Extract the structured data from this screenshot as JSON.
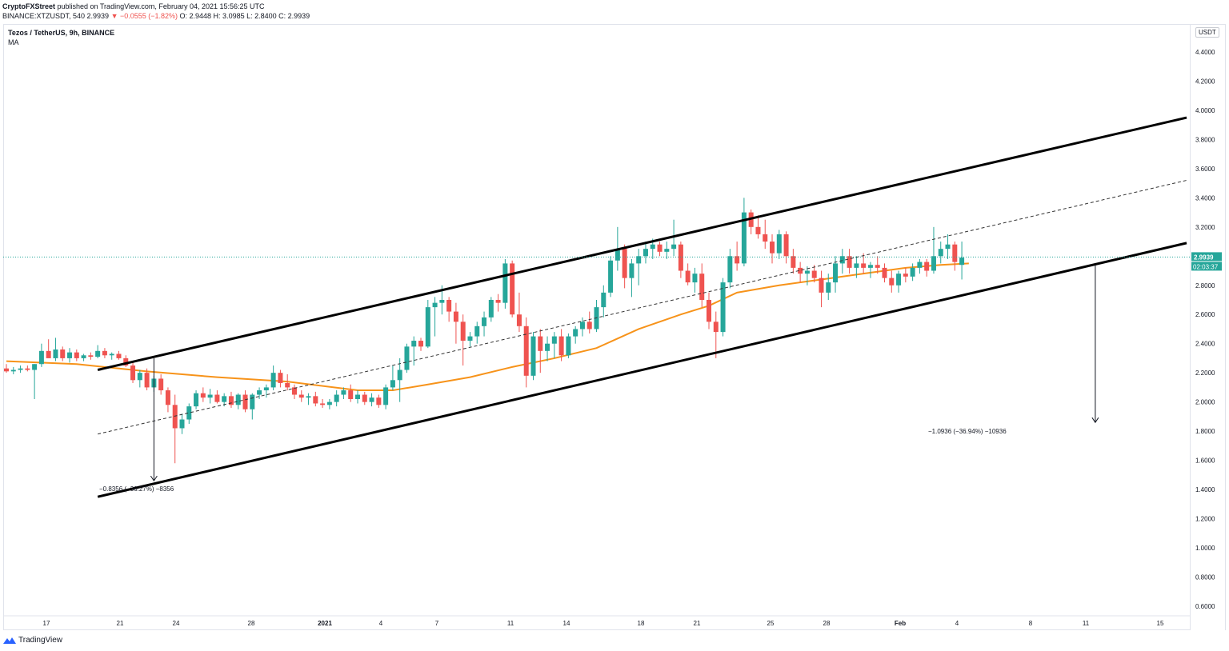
{
  "header": {
    "line1_user": "CryptoFXStreet",
    "line1_rest": " published on TradingView.com, February 04, 2021 15:56:25 UTC",
    "line2_prefix": "BINANCE:XTZUSDT, 540  2.9939 ",
    "line2_change": "▼ −0.0555 (−1.82%)",
    "line2_ohlc": " O: 2.9448  H: 3.0985  L: 2.8400  C: 2.9939"
  },
  "legend": {
    "title": "Tezos / TetherUS, 9h, BINANCE",
    "indicator": "MA"
  },
  "axis": {
    "unit": "USDT",
    "price_labels": [
      "4.4000",
      "4.2000",
      "4.0000",
      "3.8000",
      "3.6000",
      "3.4000",
      "3.2000",
      "3.0000",
      "2.8000",
      "2.6000",
      "2.4000",
      "2.2000",
      "2.0000",
      "1.8000",
      "1.6000",
      "1.4000",
      "1.2000",
      "1.0000",
      "0.8000",
      "0.6000"
    ],
    "time_labels": [
      "17",
      "21",
      "24",
      "28",
      "2021",
      "4",
      "7",
      "11",
      "14",
      "18",
      "21",
      "25",
      "28",
      "Feb",
      "4",
      "8",
      "11",
      "15"
    ]
  },
  "price_tag": {
    "value": "2.9939",
    "countdown": "02:03:37"
  },
  "annotations": {
    "left_measure": "−0.8356 (−36.27%) −8356",
    "right_measure": "−1.0936 (−36.94%) −10936"
  },
  "branding": {
    "logo_text": "TradingView"
  },
  "colors": {
    "up": "#26a69a",
    "down": "#ef5350",
    "ma": "#f7931a",
    "channel": "#000000",
    "price_line": "#26a69a"
  },
  "chart_data": {
    "type": "candlestick",
    "symbol": "XTZUSDT",
    "interval": "9h",
    "x_axis": "time",
    "ylim": [
      0.5,
      4.5
    ],
    "y_scale": "linear",
    "grid": false,
    "candles": [
      {
        "o": 2.23,
        "h": 2.26,
        "l": 2.2,
        "c": 2.21
      },
      {
        "o": 2.21,
        "h": 2.24,
        "l": 2.19,
        "c": 2.22
      },
      {
        "o": 2.22,
        "h": 2.25,
        "l": 2.2,
        "c": 2.23
      },
      {
        "o": 2.23,
        "h": 2.25,
        "l": 2.21,
        "c": 2.22
      },
      {
        "o": 2.22,
        "h": 2.26,
        "l": 2.02,
        "c": 2.26
      },
      {
        "o": 2.26,
        "h": 2.4,
        "l": 2.24,
        "c": 2.35
      },
      {
        "o": 2.35,
        "h": 2.43,
        "l": 2.33,
        "c": 2.3
      },
      {
        "o": 2.3,
        "h": 2.44,
        "l": 2.28,
        "c": 2.36
      },
      {
        "o": 2.36,
        "h": 2.38,
        "l": 2.28,
        "c": 2.3
      },
      {
        "o": 2.3,
        "h": 2.37,
        "l": 2.27,
        "c": 2.34
      },
      {
        "o": 2.34,
        "h": 2.36,
        "l": 2.28,
        "c": 2.3
      },
      {
        "o": 2.3,
        "h": 2.33,
        "l": 2.28,
        "c": 2.32
      },
      {
        "o": 2.32,
        "h": 2.34,
        "l": 2.29,
        "c": 2.31
      },
      {
        "o": 2.31,
        "h": 2.39,
        "l": 2.3,
        "c": 2.35
      },
      {
        "o": 2.35,
        "h": 2.37,
        "l": 2.3,
        "c": 2.32
      },
      {
        "o": 2.32,
        "h": 2.34,
        "l": 2.29,
        "c": 2.33
      },
      {
        "o": 2.33,
        "h": 2.35,
        "l": 2.29,
        "c": 2.3
      },
      {
        "o": 2.3,
        "h": 2.32,
        "l": 2.24,
        "c": 2.25
      },
      {
        "o": 2.25,
        "h": 2.28,
        "l": 2.13,
        "c": 2.15
      },
      {
        "o": 2.15,
        "h": 2.22,
        "l": 2.1,
        "c": 2.2
      },
      {
        "o": 2.2,
        "h": 2.23,
        "l": 2.08,
        "c": 2.1
      },
      {
        "o": 2.1,
        "h": 2.18,
        "l": 2.07,
        "c": 2.16
      },
      {
        "o": 2.16,
        "h": 2.19,
        "l": 2.05,
        "c": 2.08
      },
      {
        "o": 2.08,
        "h": 2.1,
        "l": 1.93,
        "c": 1.98
      },
      {
        "o": 1.98,
        "h": 2.05,
        "l": 1.58,
        "c": 1.82
      },
      {
        "o": 1.82,
        "h": 1.92,
        "l": 1.78,
        "c": 1.88
      },
      {
        "o": 1.88,
        "h": 1.99,
        "l": 1.85,
        "c": 1.97
      },
      {
        "o": 1.97,
        "h": 2.08,
        "l": 1.95,
        "c": 2.06
      },
      {
        "o": 2.06,
        "h": 2.1,
        "l": 2.0,
        "c": 2.03
      },
      {
        "o": 2.03,
        "h": 2.09,
        "l": 1.99,
        "c": 2.05
      },
      {
        "o": 2.05,
        "h": 2.08,
        "l": 1.99,
        "c": 2.0
      },
      {
        "o": 2.0,
        "h": 2.06,
        "l": 1.97,
        "c": 2.04
      },
      {
        "o": 2.04,
        "h": 2.07,
        "l": 1.96,
        "c": 1.98
      },
      {
        "o": 1.98,
        "h": 2.06,
        "l": 1.95,
        "c": 2.05
      },
      {
        "o": 2.05,
        "h": 2.08,
        "l": 1.93,
        "c": 1.95
      },
      {
        "o": 1.95,
        "h": 2.06,
        "l": 1.88,
        "c": 2.05
      },
      {
        "o": 2.05,
        "h": 2.1,
        "l": 2.02,
        "c": 2.08
      },
      {
        "o": 2.08,
        "h": 2.12,
        "l": 2.03,
        "c": 2.1
      },
      {
        "o": 2.1,
        "h": 2.25,
        "l": 2.08,
        "c": 2.2
      },
      {
        "o": 2.2,
        "h": 2.22,
        "l": 2.1,
        "c": 2.13
      },
      {
        "o": 2.13,
        "h": 2.19,
        "l": 2.08,
        "c": 2.1
      },
      {
        "o": 2.1,
        "h": 2.12,
        "l": 2.02,
        "c": 2.05
      },
      {
        "o": 2.05,
        "h": 2.08,
        "l": 2.0,
        "c": 2.03
      },
      {
        "o": 2.03,
        "h": 2.06,
        "l": 1.98,
        "c": 2.04
      },
      {
        "o": 2.04,
        "h": 2.07,
        "l": 1.97,
        "c": 1.99
      },
      {
        "o": 1.99,
        "h": 2.02,
        "l": 1.96,
        "c": 1.98
      },
      {
        "o": 1.98,
        "h": 2.02,
        "l": 1.95,
        "c": 2.0
      },
      {
        "o": 2.0,
        "h": 2.08,
        "l": 1.97,
        "c": 2.05
      },
      {
        "o": 2.05,
        "h": 2.1,
        "l": 2.02,
        "c": 2.08
      },
      {
        "o": 2.08,
        "h": 2.12,
        "l": 2.0,
        "c": 2.02
      },
      {
        "o": 2.02,
        "h": 2.08,
        "l": 1.99,
        "c": 2.05
      },
      {
        "o": 2.05,
        "h": 2.07,
        "l": 1.98,
        "c": 2.0
      },
      {
        "o": 2.0,
        "h": 2.06,
        "l": 1.97,
        "c": 2.03
      },
      {
        "o": 2.03,
        "h": 2.05,
        "l": 1.96,
        "c": 1.98
      },
      {
        "o": 1.98,
        "h": 2.12,
        "l": 1.95,
        "c": 2.1
      },
      {
        "o": 2.1,
        "h": 2.25,
        "l": 2.08,
        "c": 2.15
      },
      {
        "o": 2.15,
        "h": 2.3,
        "l": 2.0,
        "c": 2.22
      },
      {
        "o": 2.22,
        "h": 2.4,
        "l": 2.2,
        "c": 2.38
      },
      {
        "o": 2.38,
        "h": 2.45,
        "l": 2.25,
        "c": 2.42
      },
      {
        "o": 2.42,
        "h": 2.44,
        "l": 2.35,
        "c": 2.38
      },
      {
        "o": 2.38,
        "h": 2.7,
        "l": 2.37,
        "c": 2.65
      },
      {
        "o": 2.65,
        "h": 2.72,
        "l": 2.45,
        "c": 2.68
      },
      {
        "o": 2.68,
        "h": 2.8,
        "l": 2.6,
        "c": 2.7
      },
      {
        "o": 2.7,
        "h": 2.72,
        "l": 2.55,
        "c": 2.62
      },
      {
        "o": 2.62,
        "h": 2.68,
        "l": 2.4,
        "c": 2.55
      },
      {
        "o": 2.55,
        "h": 2.6,
        "l": 2.25,
        "c": 2.42
      },
      {
        "o": 2.42,
        "h": 2.48,
        "l": 2.38,
        "c": 2.45
      },
      {
        "o": 2.45,
        "h": 2.55,
        "l": 2.4,
        "c": 2.52
      },
      {
        "o": 2.52,
        "h": 2.62,
        "l": 2.45,
        "c": 2.58
      },
      {
        "o": 2.58,
        "h": 2.72,
        "l": 2.55,
        "c": 2.7
      },
      {
        "o": 2.7,
        "h": 2.74,
        "l": 2.62,
        "c": 2.68
      },
      {
        "o": 2.68,
        "h": 2.98,
        "l": 2.64,
        "c": 2.95
      },
      {
        "o": 2.95,
        "h": 2.97,
        "l": 2.58,
        "c": 2.6
      },
      {
        "o": 2.6,
        "h": 2.75,
        "l": 2.48,
        "c": 2.52
      },
      {
        "o": 2.52,
        "h": 2.58,
        "l": 2.1,
        "c": 2.18
      },
      {
        "o": 2.18,
        "h": 2.48,
        "l": 2.15,
        "c": 2.45
      },
      {
        "o": 2.45,
        "h": 2.5,
        "l": 2.2,
        "c": 2.35
      },
      {
        "o": 2.35,
        "h": 2.45,
        "l": 2.28,
        "c": 2.4
      },
      {
        "o": 2.4,
        "h": 2.48,
        "l": 2.3,
        "c": 2.45
      },
      {
        "o": 2.45,
        "h": 2.5,
        "l": 2.28,
        "c": 2.32
      },
      {
        "o": 2.32,
        "h": 2.47,
        "l": 2.3,
        "c": 2.45
      },
      {
        "o": 2.45,
        "h": 2.52,
        "l": 2.4,
        "c": 2.5
      },
      {
        "o": 2.5,
        "h": 2.58,
        "l": 2.45,
        "c": 2.55
      },
      {
        "o": 2.55,
        "h": 2.62,
        "l": 2.47,
        "c": 2.5
      },
      {
        "o": 2.5,
        "h": 2.7,
        "l": 2.48,
        "c": 2.65
      },
      {
        "o": 2.65,
        "h": 2.8,
        "l": 2.58,
        "c": 2.75
      },
      {
        "o": 2.75,
        "h": 3.0,
        "l": 2.72,
        "c": 2.97
      },
      {
        "o": 2.97,
        "h": 3.2,
        "l": 2.9,
        "c": 3.05
      },
      {
        "o": 3.05,
        "h": 3.08,
        "l": 2.78,
        "c": 2.85
      },
      {
        "o": 2.85,
        "h": 2.98,
        "l": 2.72,
        "c": 2.95
      },
      {
        "o": 2.95,
        "h": 3.05,
        "l": 2.8,
        "c": 3.0
      },
      {
        "o": 3.0,
        "h": 3.1,
        "l": 2.95,
        "c": 3.05
      },
      {
        "o": 3.05,
        "h": 3.12,
        "l": 2.98,
        "c": 3.08
      },
      {
        "o": 3.08,
        "h": 3.1,
        "l": 3.0,
        "c": 3.03
      },
      {
        "o": 3.03,
        "h": 3.1,
        "l": 2.98,
        "c": 3.05
      },
      {
        "o": 3.05,
        "h": 3.25,
        "l": 3.0,
        "c": 3.08
      },
      {
        "o": 3.08,
        "h": 3.1,
        "l": 2.85,
        "c": 2.9
      },
      {
        "o": 2.9,
        "h": 2.95,
        "l": 2.8,
        "c": 2.82
      },
      {
        "o": 2.82,
        "h": 2.92,
        "l": 2.75,
        "c": 2.88
      },
      {
        "o": 2.88,
        "h": 2.95,
        "l": 2.65,
        "c": 2.7
      },
      {
        "o": 2.7,
        "h": 2.75,
        "l": 2.5,
        "c": 2.55
      },
      {
        "o": 2.55,
        "h": 2.62,
        "l": 2.3,
        "c": 2.48
      },
      {
        "o": 2.48,
        "h": 2.85,
        "l": 2.45,
        "c": 2.82
      },
      {
        "o": 2.82,
        "h": 3.05,
        "l": 2.78,
        "c": 3.0
      },
      {
        "o": 3.0,
        "h": 3.1,
        "l": 2.9,
        "c": 2.95
      },
      {
        "o": 2.95,
        "h": 3.4,
        "l": 2.93,
        "c": 3.3
      },
      {
        "o": 3.3,
        "h": 3.32,
        "l": 3.15,
        "c": 3.2
      },
      {
        "o": 3.2,
        "h": 3.28,
        "l": 3.12,
        "c": 3.15
      },
      {
        "o": 3.15,
        "h": 3.25,
        "l": 3.05,
        "c": 3.1
      },
      {
        "o": 3.1,
        "h": 3.15,
        "l": 2.95,
        "c": 3.02
      },
      {
        "o": 3.02,
        "h": 3.18,
        "l": 2.98,
        "c": 3.15
      },
      {
        "o": 3.15,
        "h": 3.17,
        "l": 2.95,
        "c": 3.0
      },
      {
        "o": 3.0,
        "h": 3.05,
        "l": 2.88,
        "c": 2.92
      },
      {
        "o": 2.92,
        "h": 2.96,
        "l": 2.82,
        "c": 2.88
      },
      {
        "o": 2.88,
        "h": 2.93,
        "l": 2.8,
        "c": 2.9
      },
      {
        "o": 2.9,
        "h": 2.94,
        "l": 2.82,
        "c": 2.85
      },
      {
        "o": 2.85,
        "h": 2.9,
        "l": 2.65,
        "c": 2.75
      },
      {
        "o": 2.75,
        "h": 2.88,
        "l": 2.7,
        "c": 2.82
      },
      {
        "o": 2.82,
        "h": 3.0,
        "l": 2.75,
        "c": 2.95
      },
      {
        "o": 2.95,
        "h": 3.05,
        "l": 2.88,
        "c": 3.0
      },
      {
        "o": 3.0,
        "h": 3.05,
        "l": 2.88,
        "c": 2.92
      },
      {
        "o": 2.92,
        "h": 3.0,
        "l": 2.85,
        "c": 2.95
      },
      {
        "o": 2.95,
        "h": 3.02,
        "l": 2.88,
        "c": 2.92
      },
      {
        "o": 2.92,
        "h": 2.96,
        "l": 2.85,
        "c": 2.94
      },
      {
        "o": 2.94,
        "h": 3.0,
        "l": 2.88,
        "c": 2.92
      },
      {
        "o": 2.92,
        "h": 2.95,
        "l": 2.82,
        "c": 2.85
      },
      {
        "o": 2.85,
        "h": 2.9,
        "l": 2.75,
        "c": 2.8
      },
      {
        "o": 2.8,
        "h": 2.9,
        "l": 2.75,
        "c": 2.88
      },
      {
        "o": 2.88,
        "h": 2.92,
        "l": 2.82,
        "c": 2.86
      },
      {
        "o": 2.86,
        "h": 2.95,
        "l": 2.83,
        "c": 2.92
      },
      {
        "o": 2.92,
        "h": 2.98,
        "l": 2.88,
        "c": 2.96
      },
      {
        "o": 2.96,
        "h": 2.98,
        "l": 2.86,
        "c": 2.9
      },
      {
        "o": 2.9,
        "h": 3.2,
        "l": 2.88,
        "c": 3.0
      },
      {
        "o": 3.0,
        "h": 3.1,
        "l": 2.95,
        "c": 3.05
      },
      {
        "o": 3.05,
        "h": 3.15,
        "l": 2.98,
        "c": 3.08
      },
      {
        "o": 3.08,
        "h": 3.1,
        "l": 2.9,
        "c": 2.96
      },
      {
        "o": 2.94,
        "h": 3.1,
        "l": 2.84,
        "c": 2.99
      }
    ],
    "moving_average": {
      "points": [
        {
          "i": 0,
          "v": 2.28
        },
        {
          "i": 10,
          "v": 2.26
        },
        {
          "i": 20,
          "v": 2.21
        },
        {
          "i": 30,
          "v": 2.17
        },
        {
          "i": 40,
          "v": 2.14
        },
        {
          "i": 50,
          "v": 2.08
        },
        {
          "i": 55,
          "v": 2.08
        },
        {
          "i": 60,
          "v": 2.12
        },
        {
          "i": 66,
          "v": 2.17
        },
        {
          "i": 72,
          "v": 2.24
        },
        {
          "i": 78,
          "v": 2.3
        },
        {
          "i": 84,
          "v": 2.37
        },
        {
          "i": 90,
          "v": 2.5
        },
        {
          "i": 96,
          "v": 2.6
        },
        {
          "i": 100,
          "v": 2.66
        },
        {
          "i": 104,
          "v": 2.75
        },
        {
          "i": 110,
          "v": 2.8
        },
        {
          "i": 116,
          "v": 2.84
        },
        {
          "i": 122,
          "v": 2.88
        },
        {
          "i": 128,
          "v": 2.92
        },
        {
          "i": 133,
          "v": 2.94
        },
        {
          "i": 137,
          "v": 2.95
        }
      ]
    },
    "channel": {
      "upper": [
        {
          "i": 13,
          "v": 2.22
        },
        {
          "i": 168,
          "v": 3.95
        }
      ],
      "lower": [
        {
          "i": 13,
          "v": 1.35
        },
        {
          "i": 168,
          "v": 3.09
        }
      ],
      "mid": [
        {
          "i": 13,
          "v": 1.78
        },
        {
          "i": 168,
          "v": 3.52
        }
      ]
    },
    "measures": [
      {
        "i": 21,
        "from": 2.3,
        "to": 1.46
      },
      {
        "i": 155,
        "from": 2.94,
        "to": 1.86
      }
    ],
    "last_price": 2.9939
  }
}
